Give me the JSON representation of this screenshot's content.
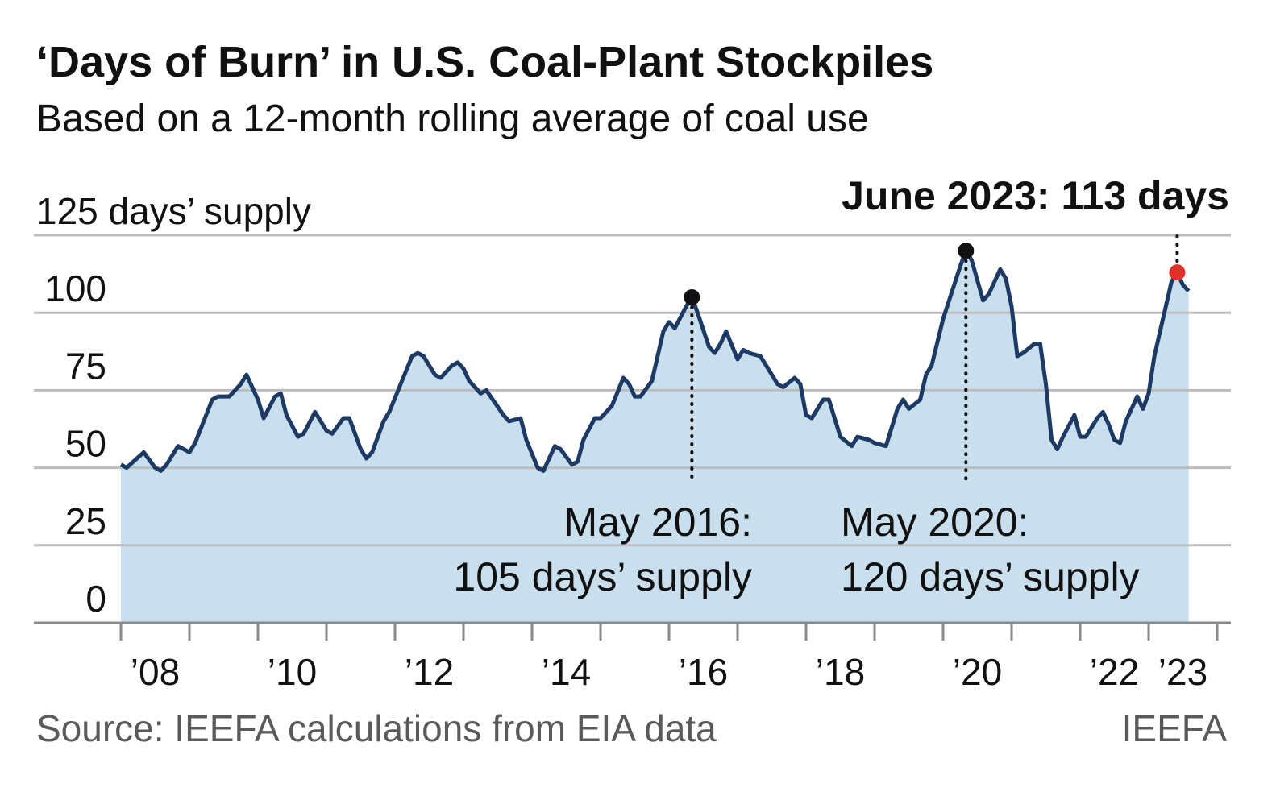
{
  "chart_data": {
    "type": "area",
    "title": "‘Days of Burn’ in U.S. Coal-Plant Stockpiles",
    "subtitle": "Based on a 12-month rolling average of coal use",
    "source": "Source: IEEFA calculations from EIA data",
    "credit": "IEEFA",
    "ylim": [
      0,
      125
    ],
    "yticks": [
      0,
      25,
      50,
      75,
      100,
      {
        "value": 125,
        "label": "125 days’ supply"
      }
    ],
    "xticks": [
      2008,
      2009,
      2010,
      2011,
      2012,
      2013,
      2014,
      2015,
      2016,
      2017,
      2018,
      2019,
      2020,
      2021,
      2022,
      2023,
      2024
    ],
    "xtick_labels": [
      {
        "value": 2008,
        "label": "’08"
      },
      {
        "value": 2010,
        "label": "’10"
      },
      {
        "value": 2012,
        "label": "’12"
      },
      {
        "value": 2014,
        "label": "’14"
      },
      {
        "value": 2016,
        "label": "’16"
      },
      {
        "value": 2018,
        "label": "’18"
      },
      {
        "value": 2020,
        "label": "’20"
      },
      {
        "value": 2022,
        "label": "’22"
      },
      {
        "value": 2023,
        "label": "’23"
      }
    ],
    "grid": true,
    "series": [
      {
        "color": "#1c3a63",
        "fill": "#c9dfee",
        "x": [
          "2008-01",
          "2008-02",
          "2008-05",
          "2008-07",
          "2008-08",
          "2008-09",
          "2008-11",
          "2009-01",
          "2009-02",
          "2009-05",
          "2009-06",
          "2009-08",
          "2009-10",
          "2009-11",
          "2010-01",
          "2010-02",
          "2010-04",
          "2010-05",
          "2010-06",
          "2010-08",
          "2010-09",
          "2010-11",
          "2011-01",
          "2011-02",
          "2011-04",
          "2011-05",
          "2011-07",
          "2011-08",
          "2011-09",
          "2011-11",
          "2011-12",
          "2012-02",
          "2012-04",
          "2012-05",
          "2012-06",
          "2012-08",
          "2012-09",
          "2012-11",
          "2012-12",
          "2013-01",
          "2013-02",
          "2013-04",
          "2013-05",
          "2013-08",
          "2013-09",
          "2013-11",
          "2013-12",
          "2014-02",
          "2014-03",
          "2014-05",
          "2014-06",
          "2014-08",
          "2014-09",
          "2014-10",
          "2014-12",
          "2015-01",
          "2015-03",
          "2015-05",
          "2015-06",
          "2015-07",
          "2015-08",
          "2015-10",
          "2015-12",
          "2016-01",
          "2016-02",
          "2016-04",
          "2016-05",
          "2016-06",
          "2016-08",
          "2016-09",
          "2016-10",
          "2016-11",
          "2017-01",
          "2017-02",
          "2017-03",
          "2017-05",
          "2017-06",
          "2017-08",
          "2017-09",
          "2017-11",
          "2017-12",
          "2018-01",
          "2018-02",
          "2018-04",
          "2018-05",
          "2018-07",
          "2018-09",
          "2018-10",
          "2018-12",
          "2019-01",
          "2019-03",
          "2019-05",
          "2019-06",
          "2019-07",
          "2019-09",
          "2019-10",
          "2019-11",
          "2020-01",
          "2020-04",
          "2020-05",
          "2020-06",
          "2020-08",
          "2020-09",
          "2020-11",
          "2020-12",
          "2021-01",
          "2021-02",
          "2021-03",
          "2021-05",
          "2021-06",
          "2021-07",
          "2021-08",
          "2021-09",
          "2021-10",
          "2021-12",
          "2022-01",
          "2022-02",
          "2022-04",
          "2022-05",
          "2022-06",
          "2022-07",
          "2022-08",
          "2022-09",
          "2022-11",
          "2022-12",
          "2023-01",
          "2023-02",
          "2023-05",
          "2023-06",
          "2023-07",
          "2023-08"
        ],
        "values": [
          51,
          50,
          55,
          50,
          49,
          51,
          57,
          55,
          58,
          72,
          73,
          73,
          77,
          80,
          72,
          66,
          73,
          74,
          67,
          60,
          61,
          68,
          62,
          61,
          66,
          66,
          56,
          53,
          55,
          65,
          68,
          77,
          86,
          87,
          86,
          80,
          79,
          83,
          84,
          82,
          78,
          74,
          75,
          67,
          65,
          66,
          59,
          50,
          49,
          57,
          56,
          51,
          52,
          59,
          66,
          66,
          70,
          79,
          77,
          73,
          73,
          78,
          94,
          97,
          95,
          102,
          105,
          100,
          89,
          87,
          90,
          94,
          85,
          88,
          87,
          86,
          83,
          77,
          76,
          79,
          77,
          67,
          66,
          72,
          72,
          60,
          57,
          60,
          59,
          58,
          57,
          69,
          72,
          69,
          72,
          80,
          83,
          98,
          115,
          120,
          117,
          104,
          106,
          114,
          111,
          102,
          86,
          87,
          90,
          90,
          77,
          59,
          56,
          60,
          67,
          60,
          60,
          66,
          68,
          64,
          59,
          58,
          65,
          73,
          69,
          74,
          86,
          110,
          113,
          109,
          107
        ]
      }
    ],
    "annotations": [
      {
        "x": "2016-05",
        "color": "#111111",
        "label": [
          "May 2016:",
          "105 days’ supply"
        ]
      },
      {
        "x": "2020-05",
        "color": "#111111",
        "label": [
          "May 2020:",
          "120 days’ supply"
        ]
      },
      {
        "x": "2023-06",
        "color": "#e0302a",
        "label": [
          "June 2023: 113 days"
        ]
      }
    ]
  }
}
